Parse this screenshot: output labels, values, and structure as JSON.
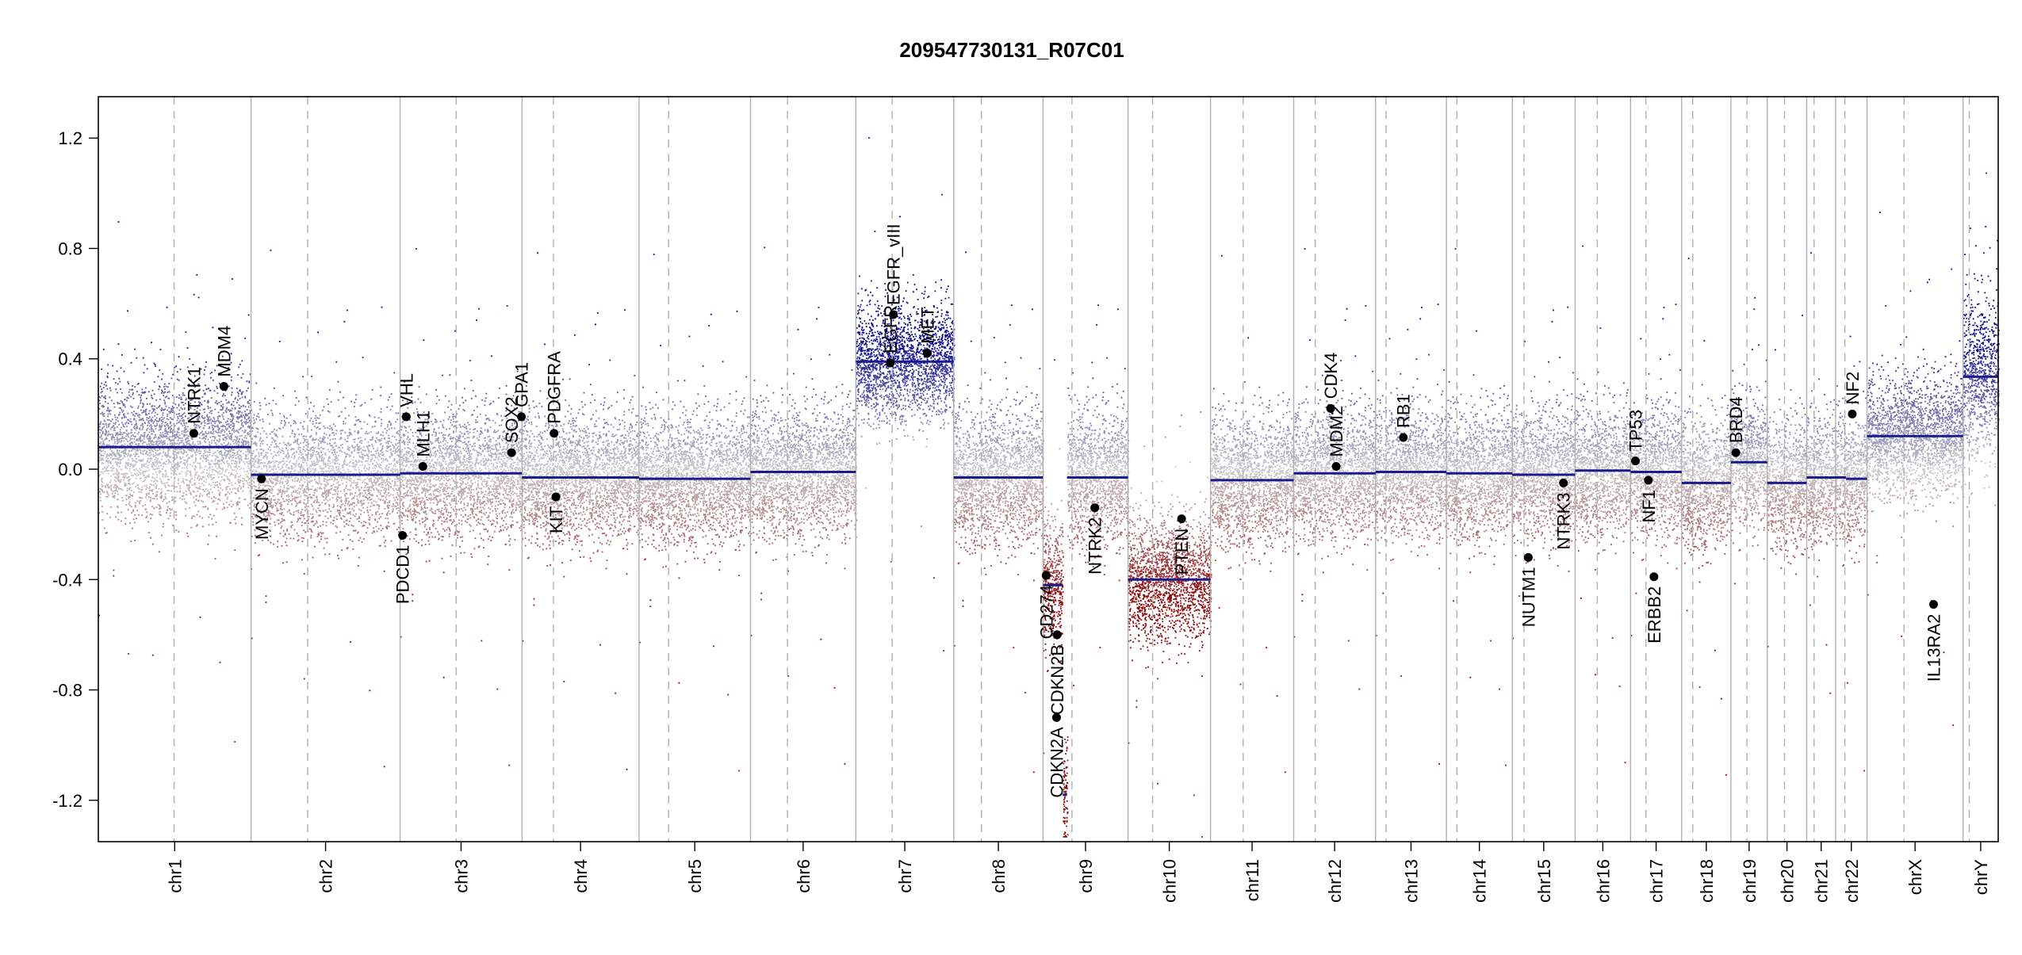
{
  "chart_data": {
    "type": "scatter",
    "title": "209547730131_R07C01",
    "xlabel": "",
    "ylabel": "",
    "ylim": [
      -1.35,
      1.35
    ],
    "yticks": [
      -1.2,
      -0.8,
      -0.4,
      0.0,
      0.4,
      0.8,
      1.2
    ],
    "ytick_labels": [
      "-1.2",
      "-0.8",
      "-0.4",
      "0.0",
      "0.4",
      "0.8",
      "1.2"
    ],
    "grid": false,
    "colors": {
      "gain": "#0a0a8c",
      "loss": "#8c0a0a",
      "neutral": "#c8c8c8",
      "segment": "#1a1a8c",
      "gene_marker": "#000000",
      "chrom_separator": "#b0b0b0",
      "centromere": "#b0b0b0",
      "axis": "#000000"
    },
    "chromosomes": [
      {
        "name": "chr1",
        "start": 0,
        "end": 248,
        "centromere": 123,
        "segments": [
          [
            0,
            248,
            0.08
          ]
        ],
        "bias": 0.08,
        "spread": 0.16
      },
      {
        "name": "chr2",
        "start": 248,
        "end": 490,
        "centromere": 340,
        "segments": [
          [
            248,
            490,
            -0.02
          ]
        ],
        "bias": -0.02,
        "spread": 0.15
      },
      {
        "name": "chr3",
        "start": 490,
        "end": 688,
        "centromere": 581,
        "segments": [
          [
            490,
            688,
            -0.015
          ]
        ],
        "bias": -0.015,
        "spread": 0.15
      },
      {
        "name": "chr4",
        "start": 688,
        "end": 878,
        "centromere": 739,
        "segments": [
          [
            688,
            878,
            -0.03
          ]
        ],
        "bias": -0.03,
        "spread": 0.15
      },
      {
        "name": "chr5",
        "start": 878,
        "end": 1059,
        "centromere": 926,
        "segments": [
          [
            878,
            1059,
            -0.035
          ]
        ],
        "bias": -0.035,
        "spread": 0.15
      },
      {
        "name": "chr6",
        "start": 1059,
        "end": 1230,
        "centromere": 1119,
        "segments": [
          [
            1059,
            1230,
            -0.01
          ]
        ],
        "bias": -0.01,
        "spread": 0.15
      },
      {
        "name": "chr7",
        "start": 1230,
        "end": 1389,
        "centromere": 1289,
        "segments": [
          [
            1230,
            1389,
            0.39
          ]
        ],
        "bias": 0.39,
        "spread": 0.14
      },
      {
        "name": "chr8",
        "start": 1389,
        "end": 1534,
        "centromere": 1434,
        "segments": [
          [
            1389,
            1534,
            -0.03
          ]
        ],
        "bias": -0.03,
        "spread": 0.16
      },
      {
        "name": "chr9",
        "start": 1534,
        "end": 1672,
        "centromere": 1581,
        "segments": [
          [
            1534,
            1566,
            -0.42
          ],
          [
            1566,
            1573,
            -1.18
          ],
          [
            1573,
            1672,
            -0.03
          ]
        ],
        "bias": -0.03,
        "spread": 0.16
      },
      {
        "name": "chr10",
        "start": 1672,
        "end": 1806,
        "centromere": 1712,
        "segments": [
          [
            1672,
            1806,
            -0.4
          ]
        ],
        "bias": -0.4,
        "spread": 0.15
      },
      {
        "name": "chr11",
        "start": 1806,
        "end": 1941,
        "centromere": 1859,
        "segments": [
          [
            1806,
            1941,
            -0.04
          ]
        ],
        "bias": -0.04,
        "spread": 0.15
      },
      {
        "name": "chr12",
        "start": 1941,
        "end": 2074,
        "centromere": 1976,
        "segments": [
          [
            1941,
            2074,
            -0.015
          ]
        ],
        "bias": -0.015,
        "spread": 0.15
      },
      {
        "name": "chr13",
        "start": 2074,
        "end": 2189,
        "centromere": 2091,
        "segments": [
          [
            2074,
            2189,
            -0.01
          ]
        ],
        "bias": -0.01,
        "spread": 0.15
      },
      {
        "name": "chr14",
        "start": 2189,
        "end": 2296,
        "centromere": 2206,
        "segments": [
          [
            2189,
            2296,
            -0.015
          ]
        ],
        "bias": -0.015,
        "spread": 0.15
      },
      {
        "name": "chr15",
        "start": 2296,
        "end": 2398,
        "centromere": 2315,
        "segments": [
          [
            2296,
            2398,
            -0.02
          ]
        ],
        "bias": -0.02,
        "spread": 0.15
      },
      {
        "name": "chr16",
        "start": 2398,
        "end": 2488,
        "centromere": 2434,
        "segments": [
          [
            2398,
            2488,
            -0.005
          ]
        ],
        "bias": -0.005,
        "spread": 0.15
      },
      {
        "name": "chr17",
        "start": 2488,
        "end": 2571,
        "centromere": 2513,
        "segments": [
          [
            2488,
            2571,
            -0.01
          ]
        ],
        "bias": -0.01,
        "spread": 0.15
      },
      {
        "name": "chr18",
        "start": 2571,
        "end": 2651,
        "centromere": 2589,
        "segments": [
          [
            2571,
            2651,
            -0.05
          ]
        ],
        "bias": -0.05,
        "spread": 0.15
      },
      {
        "name": "chr19",
        "start": 2651,
        "end": 2710,
        "centromere": 2677,
        "segments": [
          [
            2651,
            2710,
            0.025
          ]
        ],
        "bias": 0.025,
        "spread": 0.15
      },
      {
        "name": "chr20",
        "start": 2710,
        "end": 2774,
        "centromere": 2738,
        "segments": [
          [
            2710,
            2774,
            -0.05
          ]
        ],
        "bias": -0.05,
        "spread": 0.15
      },
      {
        "name": "chr21",
        "start": 2774,
        "end": 2821,
        "centromere": 2786,
        "segments": [
          [
            2774,
            2821,
            -0.03
          ]
        ],
        "bias": -0.03,
        "spread": 0.15
      },
      {
        "name": "chr22",
        "start": 2821,
        "end": 2872,
        "centromere": 2836,
        "segments": [
          [
            2821,
            2838,
            -0.03
          ],
          [
            2838,
            2872,
            -0.035
          ]
        ],
        "bias": -0.03,
        "spread": 0.15
      },
      {
        "name": "chrX",
        "start": 2872,
        "end": 3028,
        "centromere": 2932,
        "segments": [
          [
            2872,
            3028,
            0.12
          ]
        ],
        "bias": 0.12,
        "spread": 0.14
      },
      {
        "name": "chrY",
        "start": 3028,
        "end": 3085,
        "centromere": 3038,
        "segments": [
          [
            3028,
            3085,
            0.335
          ]
        ],
        "bias": 0.3,
        "spread": 0.2
      }
    ],
    "genes": [
      {
        "name": "NTRK1",
        "x": 155,
        "y": 0.13,
        "label_side": "above"
      },
      {
        "name": "MDM4",
        "x": 204,
        "y": 0.3,
        "label_side": "above"
      },
      {
        "name": "MYCN",
        "x": 265,
        "y": -0.035,
        "label_side": "below"
      },
      {
        "name": "PDCD1",
        "x": 494,
        "y": -0.24,
        "label_side": "below"
      },
      {
        "name": "VHL",
        "x": 500,
        "y": 0.19,
        "label_side": "above"
      },
      {
        "name": "MLH1",
        "x": 527,
        "y": 0.01,
        "label_side": "above"
      },
      {
        "name": "SOX2",
        "x": 671,
        "y": 0.06,
        "label_side": "above"
      },
      {
        "name": "GPA1",
        "x": 687,
        "y": 0.19,
        "label_side": "above"
      },
      {
        "name": "PDGFRA",
        "x": 740,
        "y": 0.13,
        "label_side": "above"
      },
      {
        "name": "KIT",
        "x": 743,
        "y": -0.1,
        "label_side": "below"
      },
      {
        "name": "EGFR",
        "x": 1286,
        "y": 0.385,
        "label_side": "above"
      },
      {
        "name": "EGFR_vIII",
        "x": 1291,
        "y": 0.56,
        "label_side": "above"
      },
      {
        "name": "MET",
        "x": 1346,
        "y": 0.42,
        "label_side": "above"
      },
      {
        "name": "CD274",
        "x": 1539,
        "y": -0.385,
        "label_side": "below"
      },
      {
        "name": "CDKN2A",
        "x": 1556,
        "y": -0.9,
        "label_side": "below"
      },
      {
        "name": "CDKN2B",
        "x": 1557,
        "y": -0.6,
        "label_side": "below"
      },
      {
        "name": "NTRK2",
        "x": 1618,
        "y": -0.14,
        "label_side": "below"
      },
      {
        "name": "PTEN",
        "x": 1759,
        "y": -0.18,
        "label_side": "below"
      },
      {
        "name": "MDM2",
        "x": 2010,
        "y": 0.01,
        "label_side": "above"
      },
      {
        "name": "CDK4",
        "x": 2001,
        "y": 0.22,
        "label_side": "above"
      },
      {
        "name": "RB1",
        "x": 2119,
        "y": 0.115,
        "label_side": "above"
      },
      {
        "name": "NUTM1",
        "x": 2322,
        "y": -0.32,
        "label_side": "below"
      },
      {
        "name": "NTRK3",
        "x": 2379,
        "y": -0.05,
        "label_side": "below"
      },
      {
        "name": "TP53",
        "x": 2496,
        "y": 0.03,
        "label_side": "above"
      },
      {
        "name": "NF1",
        "x": 2517,
        "y": -0.04,
        "label_side": "below"
      },
      {
        "name": "ERBB2",
        "x": 2526,
        "y": -0.39,
        "label_side": "below"
      },
      {
        "name": "BRD4",
        "x": 2659,
        "y": 0.06,
        "label_side": "above"
      },
      {
        "name": "NF2",
        "x": 2848,
        "y": 0.2,
        "label_side": "above"
      },
      {
        "name": "IL13RA2",
        "x": 2980,
        "y": -0.49,
        "label_side": "below"
      }
    ]
  }
}
